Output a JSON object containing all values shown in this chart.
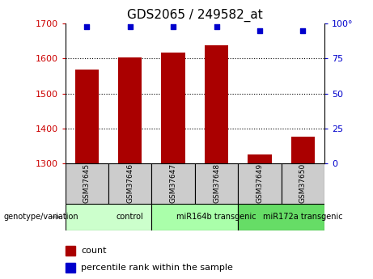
{
  "title": "GDS2065 / 249582_at",
  "samples": [
    "GSM37645",
    "GSM37646",
    "GSM37647",
    "GSM37648",
    "GSM37649",
    "GSM37650"
  ],
  "counts": [
    1568,
    1603,
    1618,
    1638,
    1326,
    1375
  ],
  "percentile_ranks": [
    98,
    98,
    98,
    98,
    95,
    95
  ],
  "ylim_left": [
    1300,
    1700
  ],
  "ylim_right": [
    0,
    100
  ],
  "yticks_left": [
    1300,
    1400,
    1500,
    1600,
    1700
  ],
  "yticks_right": [
    0,
    25,
    50,
    75,
    100
  ],
  "bar_color": "#aa0000",
  "dot_color": "#0000cc",
  "grid_color": "#000000",
  "groups": [
    {
      "label": "control",
      "start": 0,
      "end": 2,
      "color": "#ccffcc"
    },
    {
      "label": "miR164b transgenic",
      "start": 2,
      "end": 4,
      "color": "#aaffaa"
    },
    {
      "label": "miR172a transgenic",
      "start": 4,
      "end": 6,
      "color": "#66dd66"
    }
  ],
  "genotype_label": "genotype/variation",
  "legend_count_label": "count",
  "legend_pct_label": "percentile rank within the sample",
  "tick_label_color_left": "#cc0000",
  "tick_label_color_right": "#0000cc",
  "title_fontsize": 11,
  "axis_fontsize": 8,
  "bar_width": 0.55,
  "sample_box_color": "#cccccc",
  "right_label_100": "100°"
}
